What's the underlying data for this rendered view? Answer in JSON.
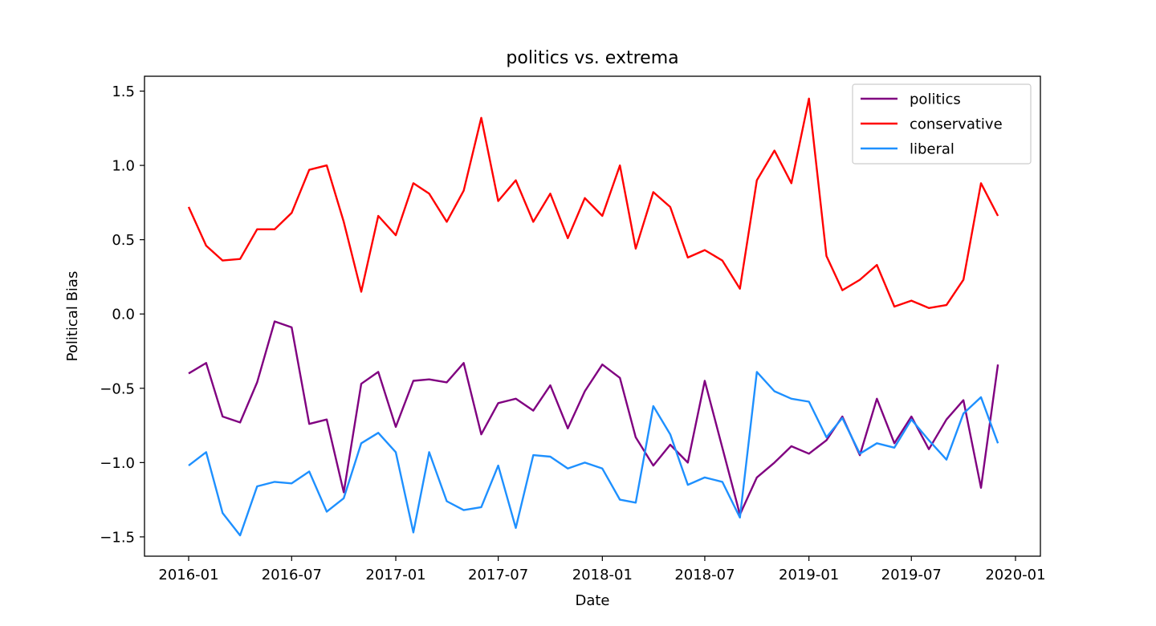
{
  "chart_data": {
    "type": "line",
    "title": "politics vs. extrema",
    "xlabel": "Date",
    "ylabel": "Political Bias",
    "x_tick_labels": [
      "2016-01",
      "2016-07",
      "2017-01",
      "2017-07",
      "2018-01",
      "2018-07",
      "2019-01",
      "2019-07",
      "2020-01"
    ],
    "y_ticks": [
      -1.5,
      -1.0,
      -0.5,
      0.0,
      0.5,
      1.0,
      1.5
    ],
    "y_tick_labels": [
      "−1.5",
      "−1.0",
      "−0.5",
      "0.0",
      "0.5",
      "1.0",
      "1.5"
    ],
    "xlim": [
      "2015-10-15",
      "2020-02-14"
    ],
    "ylim": [
      -1.63,
      1.6
    ],
    "grid": false,
    "legend_position": "top-right",
    "x": [
      "2016-01",
      "2016-02",
      "2016-03",
      "2016-04",
      "2016-05",
      "2016-06",
      "2016-07",
      "2016-08",
      "2016-09",
      "2016-10",
      "2016-11",
      "2016-12",
      "2017-01",
      "2017-02",
      "2017-03",
      "2017-04",
      "2017-05",
      "2017-06",
      "2017-07",
      "2017-08",
      "2017-09",
      "2017-10",
      "2017-11",
      "2017-12",
      "2018-01",
      "2018-02",
      "2018-03",
      "2018-04",
      "2018-05",
      "2018-06",
      "2018-07",
      "2018-08",
      "2018-09",
      "2018-10",
      "2018-11",
      "2018-12",
      "2019-01",
      "2019-02",
      "2019-03",
      "2019-04",
      "2019-05",
      "2019-06",
      "2019-07",
      "2019-08",
      "2019-09",
      "2019-10",
      "2019-11",
      "2019-12"
    ],
    "series": [
      {
        "name": "politics",
        "color": "#800080",
        "values": [
          -0.4,
          -0.33,
          -0.69,
          -0.73,
          -0.46,
          -0.05,
          -0.09,
          -0.74,
          -0.71,
          -1.2,
          -0.47,
          -0.39,
          -0.76,
          -0.45,
          -0.44,
          -0.46,
          -0.33,
          -0.81,
          -0.6,
          -0.57,
          -0.65,
          -0.48,
          -0.77,
          -0.52,
          -0.34,
          -0.43,
          -0.83,
          -1.02,
          -0.88,
          -1.0,
          -0.45,
          -0.9,
          -1.35,
          -1.1,
          -1.0,
          -0.89,
          -0.94,
          -0.85,
          -0.69,
          -0.95,
          -0.57,
          -0.87,
          -0.69,
          -0.91,
          -0.71,
          -0.58,
          -1.17,
          -0.34
        ]
      },
      {
        "name": "conservative",
        "color": "#ff0000",
        "values": [
          0.72,
          0.46,
          0.36,
          0.37,
          0.57,
          0.57,
          0.68,
          0.97,
          1.0,
          0.62,
          0.15,
          0.66,
          0.53,
          0.88,
          0.81,
          0.62,
          0.83,
          1.32,
          0.76,
          0.9,
          0.62,
          0.81,
          0.51,
          0.78,
          0.66,
          1.0,
          0.44,
          0.82,
          0.72,
          0.38,
          0.43,
          0.36,
          0.17,
          0.9,
          1.1,
          0.88,
          1.45,
          0.39,
          0.16,
          0.23,
          0.33,
          0.05,
          0.09,
          0.04,
          0.06,
          0.23,
          0.88,
          0.66
        ]
      },
      {
        "name": "liberal",
        "color": "#1e90ff",
        "values": [
          -1.02,
          -0.93,
          -1.34,
          -1.49,
          -1.16,
          -1.13,
          -1.14,
          -1.06,
          -1.33,
          -1.24,
          -0.87,
          -0.8,
          -0.93,
          -1.47,
          -0.93,
          -1.26,
          -1.32,
          -1.3,
          -1.02,
          -1.44,
          -0.95,
          -0.96,
          -1.04,
          -1.0,
          -1.04,
          -1.25,
          -1.27,
          -0.62,
          -0.81,
          -1.15,
          -1.1,
          -1.13,
          -1.37,
          -0.39,
          -0.52,
          -0.57,
          -0.59,
          -0.83,
          -0.7,
          -0.94,
          -0.87,
          -0.9,
          -0.71,
          -0.85,
          -0.98,
          -0.67,
          -0.56,
          -0.87
        ]
      }
    ]
  }
}
